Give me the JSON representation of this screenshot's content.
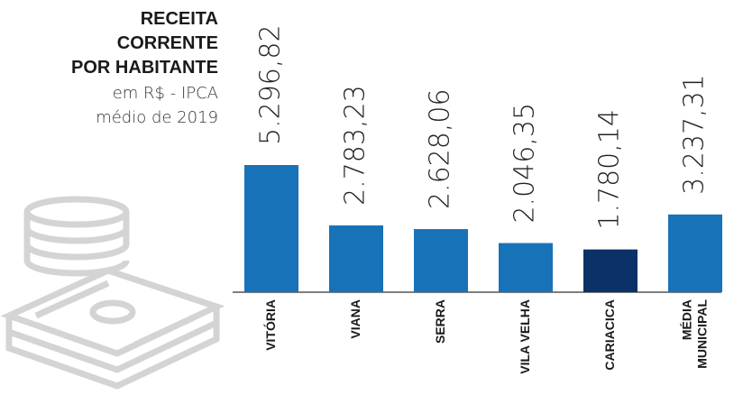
{
  "chart_data": {
    "type": "bar",
    "title": "RECEITA\nCORRENTE\nPOR HABITANTE",
    "subtitle": "em R$ - IPCA\nmédio de 2019",
    "categories": [
      "VITÓRIA",
      "VIANA",
      "SERRA",
      "VILA VELHA",
      "CARIACICA",
      "MÉDIA\nMUNICIPAL"
    ],
    "values": [
      5296.82,
      2783.23,
      2628.06,
      2046.35,
      1780.14,
      3237.31
    ],
    "value_labels": [
      "5.296,82",
      "2.783,23",
      "2.628,06",
      "2.046,35",
      "1.780,14",
      "3.237,31"
    ],
    "colors": [
      "#1872b8",
      "#1872b8",
      "#1872b8",
      "#1872b8",
      "#0b3168",
      "#1872b8"
    ]
  }
}
